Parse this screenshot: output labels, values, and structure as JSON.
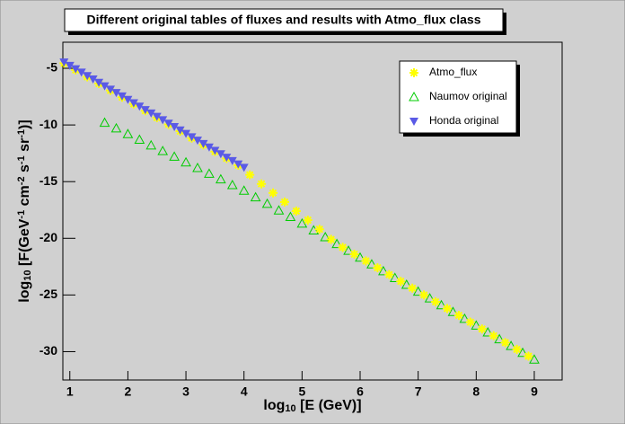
{
  "chart_data": {
    "type": "scatter",
    "title": "Different original tables of fluxes and results with Atmo_flux class",
    "xlabel": {
      "parts": [
        "log",
        "10",
        " [E (GeV)]"
      ],
      "shift": [
        "normal",
        "sub",
        "normal"
      ]
    },
    "ylabel": {
      "parts": [
        "log",
        "10",
        " [F(GeV",
        "-1",
        " cm",
        "-2",
        " s",
        "-1",
        " sr",
        "-1",
        ")]"
      ],
      "shift": [
        "normal",
        "sub",
        "normal",
        "sup",
        "normal",
        "sup",
        "normal",
        "sup",
        "normal",
        "sup",
        "normal"
      ]
    },
    "xlim": [
      0.88,
      9.48
    ],
    "ylim": [
      -32.5,
      -2.7
    ],
    "xticks": [
      1,
      2,
      3,
      4,
      5,
      6,
      7,
      8,
      9
    ],
    "yticks": [
      -30,
      -25,
      -20,
      -15,
      -10,
      -5
    ],
    "legend": "top-right",
    "series": [
      {
        "name": "Atmo_flux",
        "color": "#ffff00",
        "marker": "star",
        "x": [
          0.9,
          1.1,
          1.3,
          1.5,
          1.7,
          1.9,
          2.1,
          2.3,
          2.5,
          2.7,
          2.9,
          3.1,
          3.3,
          3.5,
          3.7,
          3.9,
          4.1,
          4.3,
          4.5,
          4.7,
          4.9,
          5.1,
          5.3,
          5.5,
          5.7,
          5.9,
          6.1,
          6.3,
          6.5,
          6.7,
          6.9,
          7.1,
          7.3,
          7.5,
          7.7,
          7.9,
          8.1,
          8.3,
          8.5,
          8.7,
          8.9
        ],
        "values": [
          -4.55,
          -5.15,
          -5.75,
          -6.35,
          -6.95,
          -7.55,
          -8.15,
          -8.75,
          -9.35,
          -9.95,
          -10.55,
          -11.15,
          -11.75,
          -12.35,
          -12.95,
          -13.55,
          -14.4,
          -15.2,
          -16.0,
          -16.8,
          -17.6,
          -18.4,
          -19.2,
          -20.1,
          -20.8,
          -21.4,
          -22.0,
          -22.6,
          -23.2,
          -23.8,
          -24.4,
          -25.0,
          -25.6,
          -26.2,
          -26.8,
          -27.4,
          -28.0,
          -28.6,
          -29.2,
          -29.8,
          -30.4
        ]
      },
      {
        "name": "Naumov original",
        "color": "#00cc00",
        "marker": "open-triangle",
        "x": [
          1.6,
          1.8,
          2.0,
          2.2,
          2.4,
          2.6,
          2.8,
          3.0,
          3.2,
          3.4,
          3.6,
          3.8,
          4.0,
          4.2,
          4.4,
          4.6,
          4.8,
          5.0,
          5.2,
          5.4,
          5.6,
          5.8,
          6.0,
          6.2,
          6.4,
          6.6,
          6.8,
          7.0,
          7.2,
          7.4,
          7.6,
          7.8,
          8.0,
          8.2,
          8.4,
          8.6,
          8.8,
          9.0
        ],
        "values": [
          -9.8,
          -10.3,
          -10.8,
          -11.3,
          -11.8,
          -12.3,
          -12.8,
          -13.3,
          -13.8,
          -14.3,
          -14.8,
          -15.3,
          -15.8,
          -16.38,
          -16.96,
          -17.54,
          -18.12,
          -18.7,
          -19.3,
          -19.9,
          -20.5,
          -21.1,
          -21.7,
          -22.3,
          -22.9,
          -23.5,
          -24.1,
          -24.7,
          -25.3,
          -25.9,
          -26.5,
          -27.1,
          -27.7,
          -28.3,
          -28.9,
          -29.5,
          -30.1,
          -30.7
        ]
      },
      {
        "name": "Honda original",
        "color": "#5a5ae6",
        "marker": "down-triangle",
        "x": [
          0.9,
          1.0,
          1.1,
          1.2,
          1.3,
          1.4,
          1.5,
          1.6,
          1.7,
          1.8,
          1.9,
          2.0,
          2.1,
          2.2,
          2.3,
          2.4,
          2.5,
          2.6,
          2.7,
          2.8,
          2.9,
          3.0,
          3.1,
          3.2,
          3.3,
          3.4,
          3.5,
          3.6,
          3.7,
          3.8,
          3.9,
          4.0
        ],
        "values": [
          -4.45,
          -4.75,
          -5.05,
          -5.35,
          -5.65,
          -5.95,
          -6.25,
          -6.55,
          -6.85,
          -7.15,
          -7.45,
          -7.75,
          -8.05,
          -8.35,
          -8.65,
          -8.95,
          -9.25,
          -9.55,
          -9.85,
          -10.15,
          -10.45,
          -10.75,
          -11.05,
          -11.35,
          -11.65,
          -11.95,
          -12.25,
          -12.55,
          -12.85,
          -13.15,
          -13.45,
          -13.75
        ]
      }
    ]
  }
}
